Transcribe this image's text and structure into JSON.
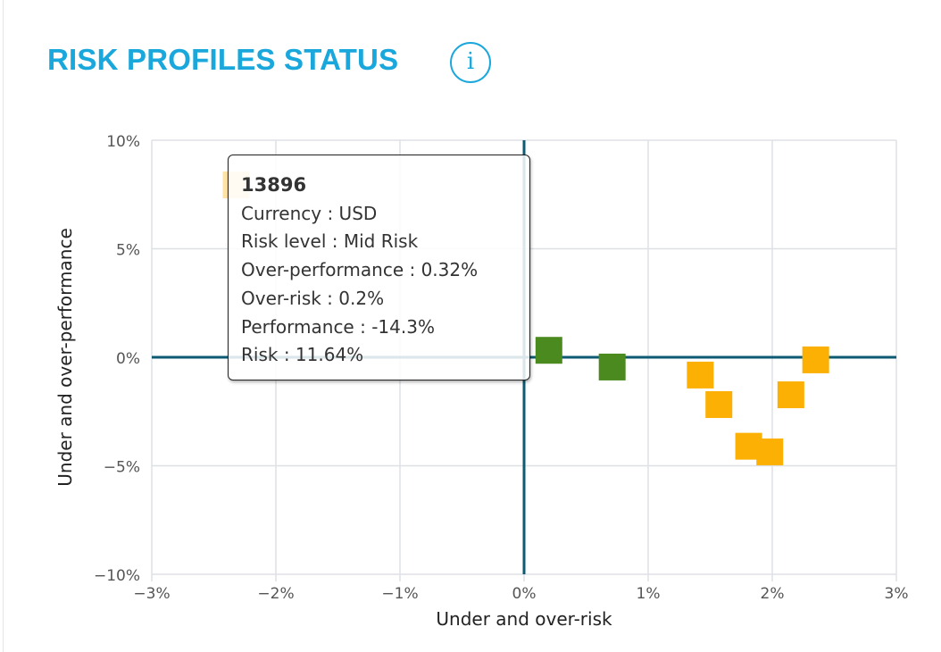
{
  "header": {
    "title": "RISK PROFILES STATUS",
    "info_icon": "info-icon",
    "info_glyph": "i"
  },
  "chart_data": {
    "type": "scatter",
    "xlabel": "Under and over-risk",
    "ylabel": "Under and over-performance",
    "xlim": [
      -3,
      3
    ],
    "ylim": [
      -10,
      10
    ],
    "x_ticks": [
      "-3%",
      "-2%",
      "-1%",
      "0%",
      "1%",
      "2%",
      "3%"
    ],
    "y_ticks": [
      "10%",
      "5%",
      "0%",
      "-5%",
      "-10%"
    ],
    "grid": true,
    "colors": {
      "green": "#4a8a1e",
      "orange": "#fbb003",
      "axis": "#0d5a73"
    },
    "points": [
      {
        "x": -2.32,
        "y": 7.94,
        "color": "orange",
        "faded": true
      },
      {
        "x": 0.2,
        "y": 0.32,
        "color": "green"
      },
      {
        "x": 0.71,
        "y": -0.45,
        "color": "green"
      },
      {
        "x": 1.42,
        "y": -0.82,
        "color": "orange"
      },
      {
        "x": 1.57,
        "y": -2.18,
        "color": "orange"
      },
      {
        "x": 1.81,
        "y": -4.1,
        "color": "orange"
      },
      {
        "x": 1.98,
        "y": -4.36,
        "color": "orange"
      },
      {
        "x": 2.15,
        "y": -1.73,
        "color": "orange"
      },
      {
        "x": 2.35,
        "y": -0.12,
        "color": "orange"
      }
    ]
  },
  "tooltip": {
    "id": "13896",
    "lines": [
      "Currency : USD",
      "Risk level : Mid Risk",
      "Over-performance : 0.32%",
      "Over-risk : 0.2%",
      "Performance : -14.3%",
      "Risk : 11.64%"
    ]
  }
}
